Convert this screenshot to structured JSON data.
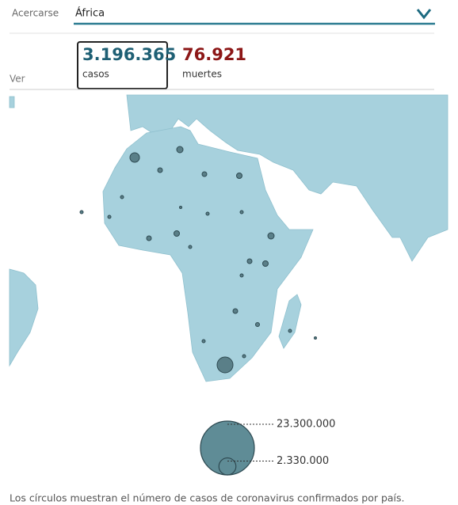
{
  "controls": {
    "zoom_label": "Acercarse",
    "region": "África",
    "view_label": "Ver"
  },
  "stats": [
    {
      "value": "3.196.365",
      "label": "casos"
    },
    {
      "value": "76.921",
      "label": "muertes"
    }
  ],
  "legend": {
    "sizes": [
      {
        "value": 23300000,
        "label": "23.300.000"
      },
      {
        "value": 2330000,
        "label": "2.330.000"
      }
    ]
  },
  "footnote": "Los círculos muestran el número de casos de coronavirus confirmados por país."
}
